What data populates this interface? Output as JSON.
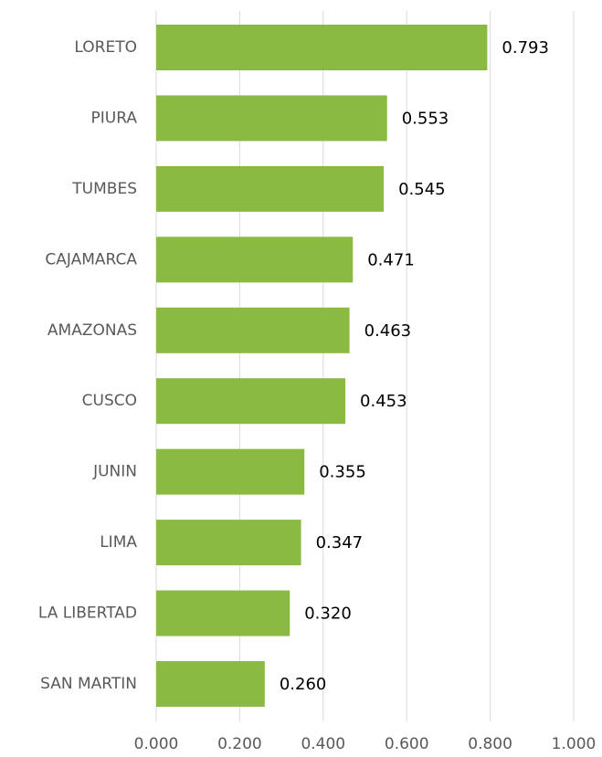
{
  "chart_data": {
    "type": "bar",
    "orientation": "horizontal",
    "categories": [
      "LORETO",
      "PIURA",
      "TUMBES",
      "CAJAMARCA",
      "AMAZONAS",
      "CUSCO",
      "JUNIN",
      "LIMA",
      "LA LIBERTAD",
      "SAN MARTIN"
    ],
    "values": [
      0.793,
      0.553,
      0.545,
      0.471,
      0.463,
      0.453,
      0.355,
      0.347,
      0.32,
      0.26
    ],
    "value_labels": [
      "0.793",
      "0.553",
      "0.545",
      "0.471",
      "0.463",
      "0.453",
      "0.355",
      "0.347",
      "0.320",
      "0.260"
    ],
    "color": "#8aba41",
    "xlim": [
      0,
      1
    ],
    "xticks": [
      {
        "value": 0,
        "label": "0.000"
      },
      {
        "value": 0.2,
        "label": "0.200"
      },
      {
        "value": 0.4,
        "label": "0.400"
      },
      {
        "value": 0.6,
        "label": "0.600"
      },
      {
        "value": 0.8,
        "label": "0.800"
      },
      {
        "value": 1,
        "label": "1.000"
      }
    ],
    "grid": true
  }
}
